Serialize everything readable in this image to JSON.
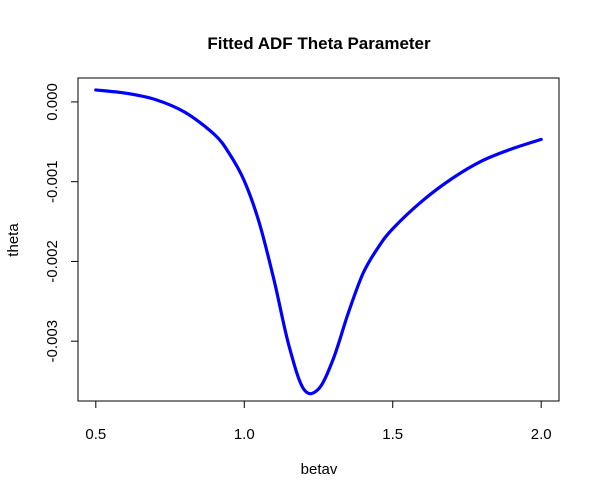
{
  "chart_data": {
    "type": "line",
    "title": "Fitted ADF Theta Parameter",
    "xlabel": "betav",
    "ylabel": "theta",
    "xlim": [
      0.44,
      2.06
    ],
    "ylim": [
      -0.00375,
      0.0003
    ],
    "x_ticks": [
      0.5,
      1.0,
      1.5,
      2.0
    ],
    "x_tick_labels": [
      "0.5",
      "1.0",
      "1.5",
      "2.0"
    ],
    "y_ticks": [
      0.0,
      -0.001,
      -0.002,
      -0.003
    ],
    "y_tick_labels": [
      "0.000",
      "-0.001",
      "-0.002",
      "-0.003"
    ],
    "grid": false,
    "line_color": "#0000ff",
    "series": [
      {
        "x": [
          0.5,
          0.6,
          0.7,
          0.8,
          0.9,
          0.95,
          1.0,
          1.05,
          1.1,
          1.15,
          1.2,
          1.25,
          1.3,
          1.35,
          1.4,
          1.45,
          1.5,
          1.6,
          1.7,
          1.8,
          1.9,
          2.0
        ],
        "y": [
          0.00015,
          0.00011,
          3e-05,
          -0.00013,
          -0.00041,
          -0.00065,
          -0.00099,
          -0.00151,
          -0.00223,
          -0.00305,
          -0.0036,
          -0.0036,
          -0.00322,
          -0.00265,
          -0.00215,
          -0.00183,
          -0.00159,
          -0.00124,
          -0.00096,
          -0.00074,
          -0.00059,
          -0.00047
        ]
      }
    ]
  }
}
